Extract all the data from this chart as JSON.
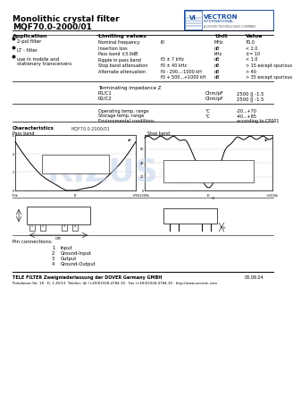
{
  "title": "Monolithic crystal filter",
  "model": "MQF70.0-2000/01",
  "bg_color": "#ffffff",
  "application_bullets": [
    "2-pol filter",
    "LT - filter",
    "use in mobile and\nstationary transceivers"
  ],
  "limiting_values": [
    [
      "Nominal frequency",
      "f0",
      "MHz",
      "70.0"
    ],
    [
      "Insertion loss",
      "",
      "dB",
      "< 2.0"
    ],
    [
      "Pass band ±3.0dB",
      "",
      "kHz",
      "±= 10"
    ],
    [
      "Ripple in pass band",
      "f0 ± 7 kHz",
      "dB",
      "< 1.0"
    ],
    [
      "Stop band attenuation",
      "f0 ± 40 kHz",
      "dB",
      "> 15 except spurious"
    ],
    [
      "Alternate attenuation",
      "f0 - 200...-1000 kH",
      "dB",
      "> 40"
    ],
    [
      "",
      "f0 + 500...+1000 kH",
      "dB",
      "> 35 except spurious"
    ]
  ],
  "terminating": [
    [
      "R1/C1",
      "Ohm/pF",
      "2500 || -1.5"
    ],
    [
      "R2/C2",
      "Ohm/pF",
      "2500 || -1.5"
    ]
  ],
  "env_table": [
    [
      "Operating temp. range",
      "°C",
      "-20...+70"
    ],
    [
      "Storage temp. range",
      "°C",
      "-40...+85"
    ],
    [
      "Environmental conditions",
      "",
      "according to CF001"
    ]
  ],
  "char_model": "MQF70.0-2000/01",
  "footer": "TELE FILTER Zweigniederlassung der DOVER Germany GMBH",
  "footer_date": "03.09.04",
  "footer2": "Potsdamer Str. 18 · D- 1-45/13  Telefon: ☏ (+49)03328-4784-10 · Fax (+49)03328-4784-30 · http://www.vectron.com",
  "vectron_blue": "#1a4fa0",
  "watermark_color": "#c0d0e8"
}
